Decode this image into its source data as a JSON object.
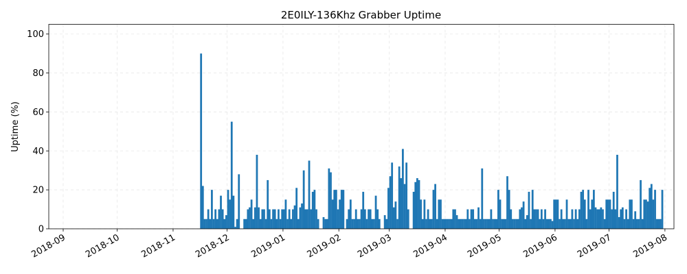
{
  "chart_data": {
    "type": "bar",
    "title": "2E0ILY-136Khz Grabber Uptime",
    "xlabel": "",
    "ylabel": "Uptime (%)",
    "ylim": [
      0,
      105
    ],
    "xlim": [
      "2018-08-24",
      "2019-08-06"
    ],
    "grid": true,
    "bar_color": "#1f77b4",
    "yticks": [
      0,
      20,
      40,
      60,
      80,
      100
    ],
    "xticks": [
      {
        "date": "2018-09-01",
        "label": "2018-09"
      },
      {
        "date": "2018-10-01",
        "label": "2018-10"
      },
      {
        "date": "2018-11-01",
        "label": "2018-11"
      },
      {
        "date": "2018-12-01",
        "label": "2018-12"
      },
      {
        "date": "2019-01-01",
        "label": "2019-01"
      },
      {
        "date": "2019-02-01",
        "label": "2019-02"
      },
      {
        "date": "2019-03-01",
        "label": "2019-03"
      },
      {
        "date": "2019-04-01",
        "label": "2019-04"
      },
      {
        "date": "2019-05-01",
        "label": "2019-05"
      },
      {
        "date": "2019-06-01",
        "label": "2019-06"
      },
      {
        "date": "2019-07-01",
        "label": "2019-07"
      },
      {
        "date": "2019-08-01",
        "label": "2019-08"
      }
    ],
    "series": [
      {
        "x_start": "2018-11-16",
        "values": [
          90,
          22,
          5,
          5,
          10,
          5,
          20,
          5,
          10,
          5,
          10,
          17,
          10,
          5,
          7,
          20,
          15,
          55,
          17,
          1,
          5,
          28,
          0,
          0,
          5,
          5,
          10,
          11,
          15,
          5,
          11,
          38,
          11,
          5,
          10,
          10,
          5,
          25,
          10,
          5,
          10,
          10,
          5,
          10,
          5,
          10,
          10,
          15,
          5,
          10,
          5,
          10,
          12,
          21,
          5,
          11,
          13,
          30,
          10,
          10,
          35,
          10,
          19,
          20,
          10,
          5,
          0,
          0,
          6,
          5,
          5,
          31,
          29,
          15,
          20,
          20,
          10,
          15,
          20,
          20,
          0,
          5,
          10,
          15,
          5,
          5,
          10,
          5,
          5,
          10,
          19,
          10,
          5,
          10,
          10,
          5,
          5,
          17,
          10,
          5,
          0,
          0,
          7,
          5,
          21,
          27,
          34,
          11,
          14,
          5,
          32,
          26,
          41,
          23,
          34,
          10,
          0,
          0,
          19,
          24,
          26,
          25,
          15,
          5,
          15,
          5,
          10,
          5,
          5,
          20,
          23,
          5,
          15,
          15,
          5,
          5,
          5,
          5,
          5,
          5,
          10,
          10,
          7,
          5,
          5,
          5,
          5,
          5,
          10,
          5,
          10,
          10,
          5,
          5,
          11,
          5,
          31,
          5,
          5,
          5,
          5,
          10,
          5,
          5,
          5,
          20,
          15,
          5,
          5,
          5,
          27,
          20,
          10,
          5,
          5,
          5,
          5,
          10,
          11,
          14,
          5,
          7,
          19,
          5,
          20,
          10,
          10,
          10,
          5,
          10,
          5,
          10,
          5,
          5,
          5,
          4,
          15,
          15,
          15,
          5,
          10,
          5,
          5,
          15,
          5,
          5,
          10,
          5,
          10,
          5,
          10,
          19,
          20,
          15,
          5,
          20,
          10,
          15,
          20,
          11,
          10,
          10,
          11,
          10,
          5,
          15,
          15,
          15,
          10,
          19,
          10,
          38,
          6,
          10,
          11,
          5,
          10,
          5,
          15,
          15,
          5,
          9,
          5,
          5,
          25,
          5,
          15,
          15,
          14,
          21,
          23,
          15,
          20,
          5,
          5,
          5,
          20
        ]
      }
    ]
  }
}
